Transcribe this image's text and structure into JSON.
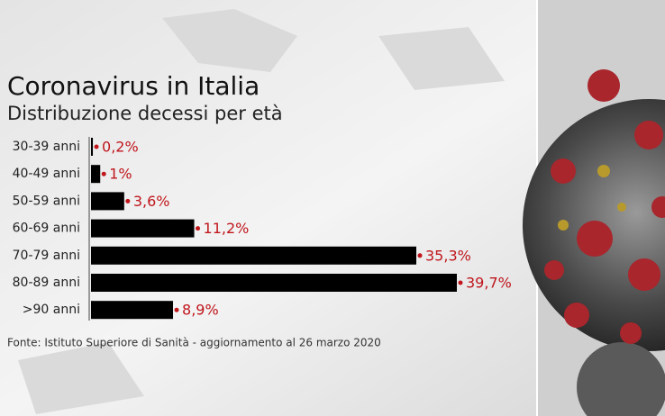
{
  "chart_data": {
    "type": "bar",
    "orientation": "horizontal",
    "title": "Coronavirus in Italia",
    "subtitle": "Distribuzione decessi per età",
    "categories": [
      "30-39 anni",
      "40-49 anni",
      "50-59 anni",
      "60-69 anni",
      "70-79 anni",
      "80-89 anni",
      ">90 anni"
    ],
    "values": [
      0.2,
      1,
      3.6,
      11.2,
      35.3,
      39.7,
      8.9
    ],
    "value_labels": [
      "0,2%",
      "1%",
      "3,6%",
      "11,2%",
      "35,3%",
      "39,7%",
      "8,9%"
    ],
    "color": "#000000",
    "label_color": "#c0161c",
    "source": "Fonte: Istituto Superiore di Sanità - aggiornamento al 26 marzo 2020"
  }
}
